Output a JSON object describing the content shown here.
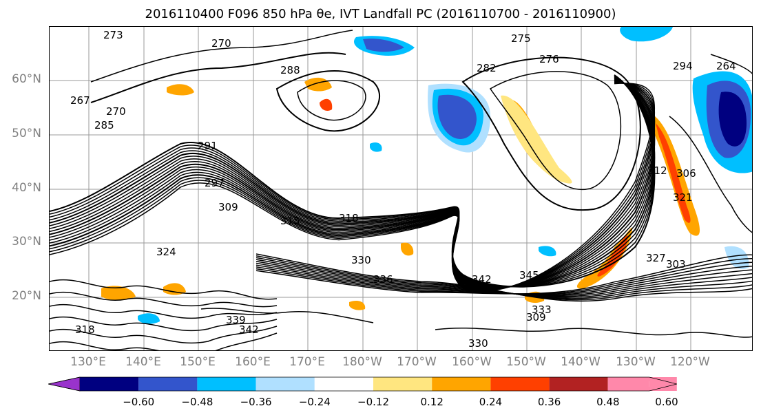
{
  "title": "2016110400 F096 850 hPa θe, IVT Landfall PC (2016110700 - 2016110900)",
  "map": {
    "lat_labels": [
      "60°N",
      "50°N",
      "40°N",
      "30°N",
      "20°N"
    ],
    "lon_labels": [
      "130°E",
      "140°E",
      "150°E",
      "160°E",
      "170°E",
      "180°W",
      "170°W",
      "160°W",
      "150°W",
      "140°W",
      "130°W",
      "120°W"
    ],
    "contour_labels": [
      "273",
      "270",
      "275",
      "276",
      "282",
      "288",
      "294",
      "264",
      "267",
      "270",
      "285",
      "291",
      "297",
      "309",
      "315",
      "318",
      "324",
      "330",
      "336",
      "342",
      "345",
      "333",
      "327",
      "321",
      "312",
      "306",
      "303",
      "309",
      "339",
      "342",
      "318",
      "330"
    ]
  },
  "colorbar": {
    "colors": [
      "#9933cc",
      "#000080",
      "#3355cc",
      "#00bfff",
      "#b0e0ff",
      "#ffffff",
      "#ffe680",
      "#ffa500",
      "#ff4000",
      "#b22222",
      "#ff88aa"
    ],
    "ticks": [
      "−0.60",
      "−0.48",
      "−0.36",
      "−0.24",
      "−0.12",
      "0.12",
      "0.24",
      "0.36",
      "0.48",
      "0.60"
    ]
  }
}
